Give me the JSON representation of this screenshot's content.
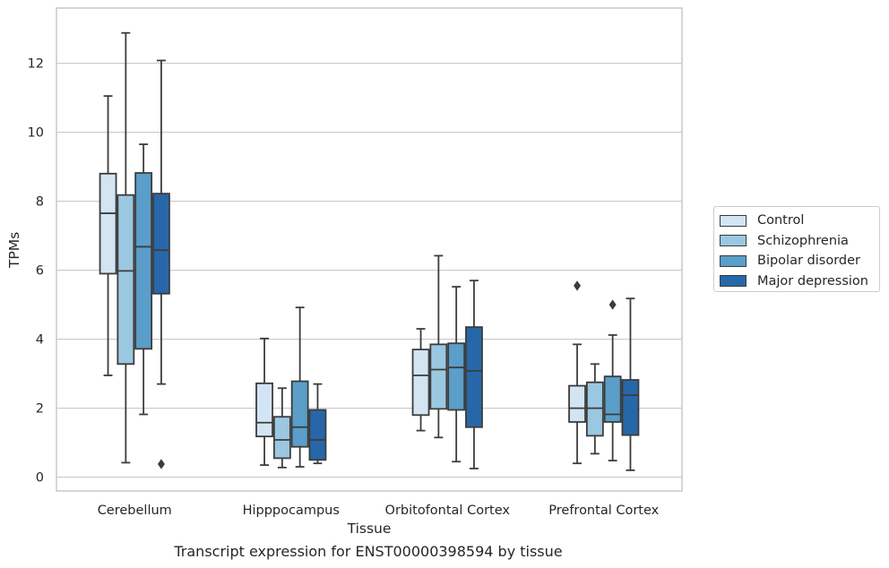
{
  "chart_data": {
    "type": "box",
    "caption": "Transcript expression for ENST00000398594 by tissue",
    "xlabel": "Tissue",
    "ylabel": "TPMs",
    "ylim": [
      -0.4,
      13.6
    ],
    "yticks": [
      0,
      2,
      4,
      6,
      8,
      10,
      12
    ],
    "grid": true,
    "legend_position": "right",
    "categories": [
      "Cerebellum",
      "Hipppocampus",
      "Orbitofontal Cortex",
      "Prefrontal Cortex"
    ],
    "series": [
      {
        "name": "Control",
        "color": "#d3e4f3",
        "boxes": [
          {
            "whisker_low": 2.95,
            "q1": 5.9,
            "median": 7.65,
            "q3": 8.8,
            "whisker_high": 11.05,
            "outliers": []
          },
          {
            "whisker_low": 0.35,
            "q1": 1.18,
            "median": 1.58,
            "q3": 2.72,
            "whisker_high": 4.02,
            "outliers": []
          },
          {
            "whisker_low": 1.35,
            "q1": 1.8,
            "median": 2.95,
            "q3": 3.7,
            "whisker_high": 4.3,
            "outliers": []
          },
          {
            "whisker_low": 0.4,
            "q1": 1.6,
            "median": 2.0,
            "q3": 2.65,
            "whisker_high": 3.85,
            "outliers": [
              5.55
            ]
          }
        ]
      },
      {
        "name": "Schizophrenia",
        "color": "#9ac8e0",
        "boxes": [
          {
            "whisker_low": 0.42,
            "q1": 3.28,
            "median": 5.98,
            "q3": 8.18,
            "whisker_high": 12.88,
            "outliers": []
          },
          {
            "whisker_low": 0.28,
            "q1": 0.55,
            "median": 1.08,
            "q3": 1.75,
            "whisker_high": 2.58,
            "outliers": []
          },
          {
            "whisker_low": 1.15,
            "q1": 1.98,
            "median": 3.12,
            "q3": 3.85,
            "whisker_high": 6.42,
            "outliers": []
          },
          {
            "whisker_low": 0.68,
            "q1": 1.2,
            "median": 2.0,
            "q3": 2.75,
            "whisker_high": 3.28,
            "outliers": []
          }
        ]
      },
      {
        "name": "Bipolar disorder",
        "color": "#5a9ec9",
        "boxes": [
          {
            "whisker_low": 1.82,
            "q1": 3.72,
            "median": 6.68,
            "q3": 8.82,
            "whisker_high": 9.65,
            "outliers": []
          },
          {
            "whisker_low": 0.3,
            "q1": 0.88,
            "median": 1.45,
            "q3": 2.78,
            "whisker_high": 4.92,
            "outliers": []
          },
          {
            "whisker_low": 0.45,
            "q1": 1.95,
            "median": 3.18,
            "q3": 3.88,
            "whisker_high": 5.52,
            "outliers": []
          },
          {
            "whisker_low": 0.48,
            "q1": 1.6,
            "median": 1.82,
            "q3": 2.92,
            "whisker_high": 4.12,
            "outliers": [
              5.0
            ]
          }
        ]
      },
      {
        "name": "Major depression",
        "color": "#2767a9",
        "boxes": [
          {
            "whisker_low": 2.7,
            "q1": 5.32,
            "median": 6.58,
            "q3": 8.22,
            "whisker_high": 12.08,
            "outliers": [
              0.38
            ]
          },
          {
            "whisker_low": 0.4,
            "q1": 0.5,
            "median": 1.08,
            "q3": 1.95,
            "whisker_high": 2.7,
            "outliers": []
          },
          {
            "whisker_low": 0.25,
            "q1": 1.45,
            "median": 3.08,
            "q3": 4.35,
            "whisker_high": 5.7,
            "outliers": []
          },
          {
            "whisker_low": 0.2,
            "q1": 1.22,
            "median": 2.38,
            "q3": 2.82,
            "whisker_high": 5.18,
            "outliers": []
          }
        ]
      }
    ]
  }
}
